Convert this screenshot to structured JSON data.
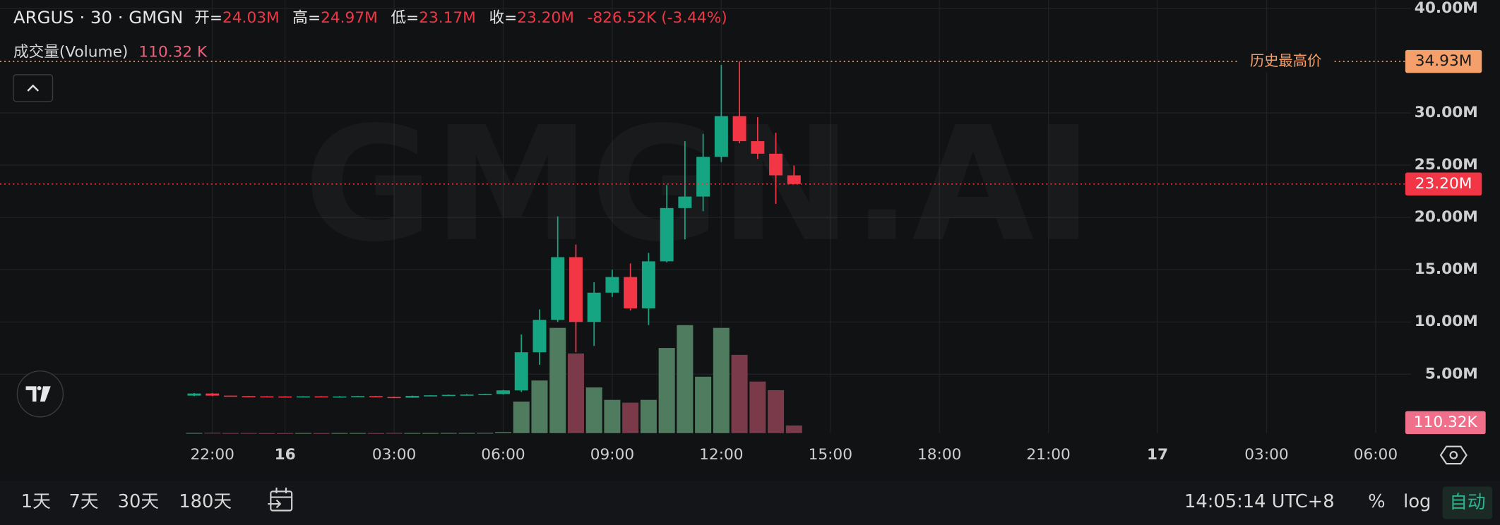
{
  "chart_data": {
    "type": "candlestick",
    "header": {
      "symbol": "ARGUS · 30 · GMGN",
      "ohlc": [
        {
          "label": "开=",
          "value": "24.03M"
        },
        {
          "label": "高=",
          "value": "24.97M"
        },
        {
          "label": "低=",
          "value": "23.17M"
        },
        {
          "label": "收=",
          "value": "23.20M"
        }
      ],
      "change": "-826.52K (-3.44%)"
    },
    "watermark": "GMGN.AI",
    "x": [
      "21:30",
      "22:00",
      "22:30",
      "23:00",
      "23:30",
      "00:00",
      "00:30",
      "01:00",
      "01:30",
      "02:00",
      "02:30",
      "03:00",
      "03:30",
      "04:00",
      "04:30",
      "05:00",
      "05:30",
      "06:00",
      "06:30",
      "07:00",
      "07:30",
      "08:00",
      "08:30",
      "09:00",
      "09:30",
      "10:00",
      "10:30",
      "11:00",
      "11:30",
      "12:00",
      "12:30",
      "13:00",
      "13:30",
      "14:00"
    ],
    "open": [
      2.95,
      3.15,
      2.95,
      2.9,
      2.88,
      2.87,
      2.86,
      2.88,
      2.84,
      2.87,
      2.9,
      2.82,
      2.75,
      2.92,
      2.98,
      3.02,
      3.05,
      3.1,
      3.45,
      7.1,
      10.2,
      16.2,
      10.0,
      12.8,
      14.3,
      11.3,
      15.8,
      20.9,
      22.0,
      25.8,
      29.7,
      27.3,
      26.1,
      24.03
    ],
    "high": [
      3.2,
      3.2,
      2.95,
      2.92,
      2.9,
      2.9,
      2.9,
      2.9,
      2.9,
      2.92,
      2.92,
      2.85,
      2.95,
      3.0,
      3.05,
      3.1,
      3.12,
      3.5,
      8.8,
      11.2,
      20.1,
      17.4,
      13.8,
      15.0,
      15.6,
      16.6,
      23.1,
      27.3,
      28.0,
      34.6,
      34.93,
      29.6,
      28.1,
      24.97
    ],
    "low": [
      2.9,
      2.9,
      2.88,
      2.86,
      2.85,
      2.84,
      2.84,
      2.82,
      2.83,
      2.85,
      2.8,
      2.72,
      2.74,
      2.9,
      2.96,
      3.0,
      3.0,
      3.05,
      3.3,
      5.9,
      10.0,
      7.1,
      7.7,
      12.4,
      11.1,
      9.7,
      15.7,
      17.9,
      20.6,
      25.3,
      27.1,
      25.6,
      21.3,
      23.17
    ],
    "close": [
      3.15,
      2.95,
      2.9,
      2.88,
      2.87,
      2.86,
      2.88,
      2.84,
      2.87,
      2.9,
      2.82,
      2.75,
      2.92,
      2.98,
      3.02,
      3.05,
      3.1,
      3.45,
      7.1,
      10.2,
      16.2,
      10.0,
      12.8,
      14.3,
      11.3,
      15.8,
      20.9,
      22.0,
      25.8,
      29.7,
      27.3,
      26.1,
      24.03,
      23.2
    ],
    "up_color": "#16a583",
    "down_color": "#f23645",
    "volume": {
      "name": "成交量(Volume)",
      "values": [
        3,
        5,
        2,
        2,
        1,
        1,
        2,
        1,
        2,
        2,
        1,
        3,
        2,
        2,
        3,
        3,
        4,
        15,
        455,
        760,
        1520,
        1150,
        660,
        480,
        440,
        480,
        1230,
        1560,
        815,
        1520,
        1130,
        745,
        620,
        110.32
      ],
      "last_label": "110.32 K",
      "axis_label": "110.32K",
      "up_color": "#4f7b5f",
      "down_color": "#7a3a4a"
    },
    "ylim": [
      -0.64,
      40.8
    ],
    "yticks": [
      {
        "value": 5,
        "label": "5.00M"
      },
      {
        "value": 10,
        "label": "10.00M"
      },
      {
        "value": 15,
        "label": "15.00M"
      },
      {
        "value": 20,
        "label": "20.00M"
      },
      {
        "value": 25,
        "label": "25.00M"
      },
      {
        "value": 30,
        "label": "30.00M"
      },
      {
        "value": 40,
        "label": "40.00M"
      }
    ],
    "xticks": [
      "22:00",
      "16",
      "03:00",
      "06:00",
      "09:00",
      "12:00",
      "15:00",
      "18:00",
      "21:00",
      "17",
      "03:00",
      "06:00"
    ],
    "grid": true,
    "ath": {
      "value": 34.93,
      "label": "34.93M",
      "text": "历史最高价",
      "color": "#f5a06a"
    },
    "last_price": {
      "value": 23.2,
      "label": "23.20M",
      "color": "#f23645"
    },
    "toolbar": {
      "ranges": [
        "1天",
        "7天",
        "30天",
        "180天"
      ],
      "clock": "14:05:14 UTC+8",
      "percent": "%",
      "log": "log",
      "auto": "自动"
    }
  }
}
